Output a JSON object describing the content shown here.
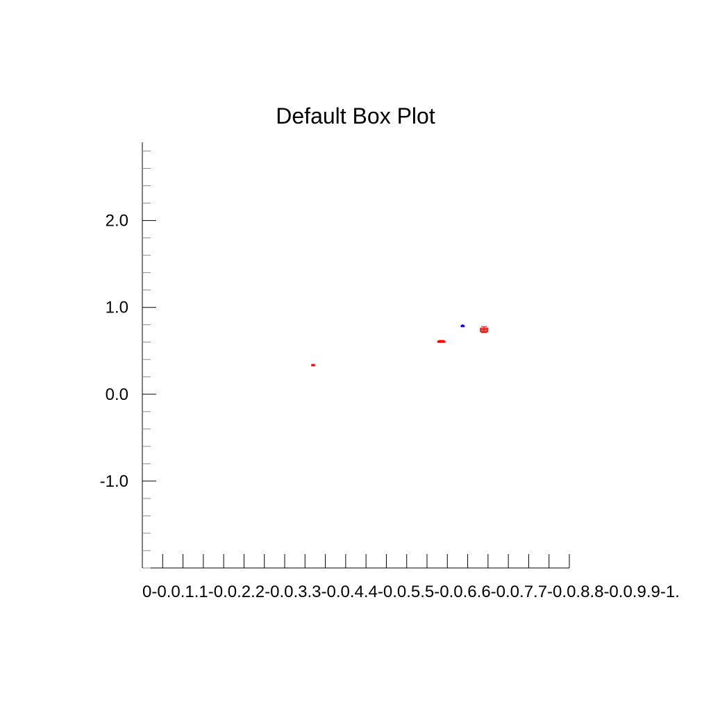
{
  "chart_data": {
    "type": "box",
    "title": "Default Box Plot",
    "xlabel": "",
    "ylabel": "",
    "categories": [
      "0-0.1",
      "0.1-0.2",
      "0.2-0.3",
      "0.3-0.4",
      "0.4-0.5",
      "0.5-0.6",
      "0.6-0.7",
      "0.7-0.8",
      "0.8-0.9",
      "0.9-1."
    ],
    "category_label_text": "0-0.0.1.1-0.0.2.2-0.0.3.3-0.0.4.4-0.0.5.5-0.0.6.6-0.0.7.7-0.0.8.8-0.0.9.9-1.",
    "ylim": [
      -2.0,
      2.9
    ],
    "yticks": [
      -1.0,
      0.0,
      1.0,
      2.0
    ],
    "ytick_labels": [
      "-1.0",
      "0.0",
      "1.0",
      "2.0"
    ],
    "y_minor_step": 0.2,
    "grid": false,
    "legend": "none",
    "boxes": [
      {
        "category": "0.3-0.4",
        "x": 0.4,
        "low": 0.33,
        "q1": 0.33,
        "median": 0.34,
        "q3": 0.34,
        "high": 0.34,
        "color": "#ff0000"
      },
      {
        "category": "0.6-0.7",
        "x": 0.7,
        "low": 0.6,
        "q1": 0.6,
        "median": 0.61,
        "q3": 0.61,
        "high": 0.62,
        "color": "#ff0000"
      },
      {
        "category": "0.7-0.8",
        "x": 0.75,
        "low": 0.78,
        "q1": 0.78,
        "median": 0.79,
        "q3": 0.79,
        "high": 0.8,
        "color": "#0000ff"
      },
      {
        "category": "0.8-0.9",
        "x": 0.8,
        "low": 0.71,
        "q1": 0.72,
        "median": 0.74,
        "q3": 0.76,
        "high": 0.78,
        "color": "#ff0000"
      }
    ],
    "colors": {
      "axis": "#000000",
      "box_red": "#ff0000",
      "box_blue": "#0000ff"
    }
  }
}
